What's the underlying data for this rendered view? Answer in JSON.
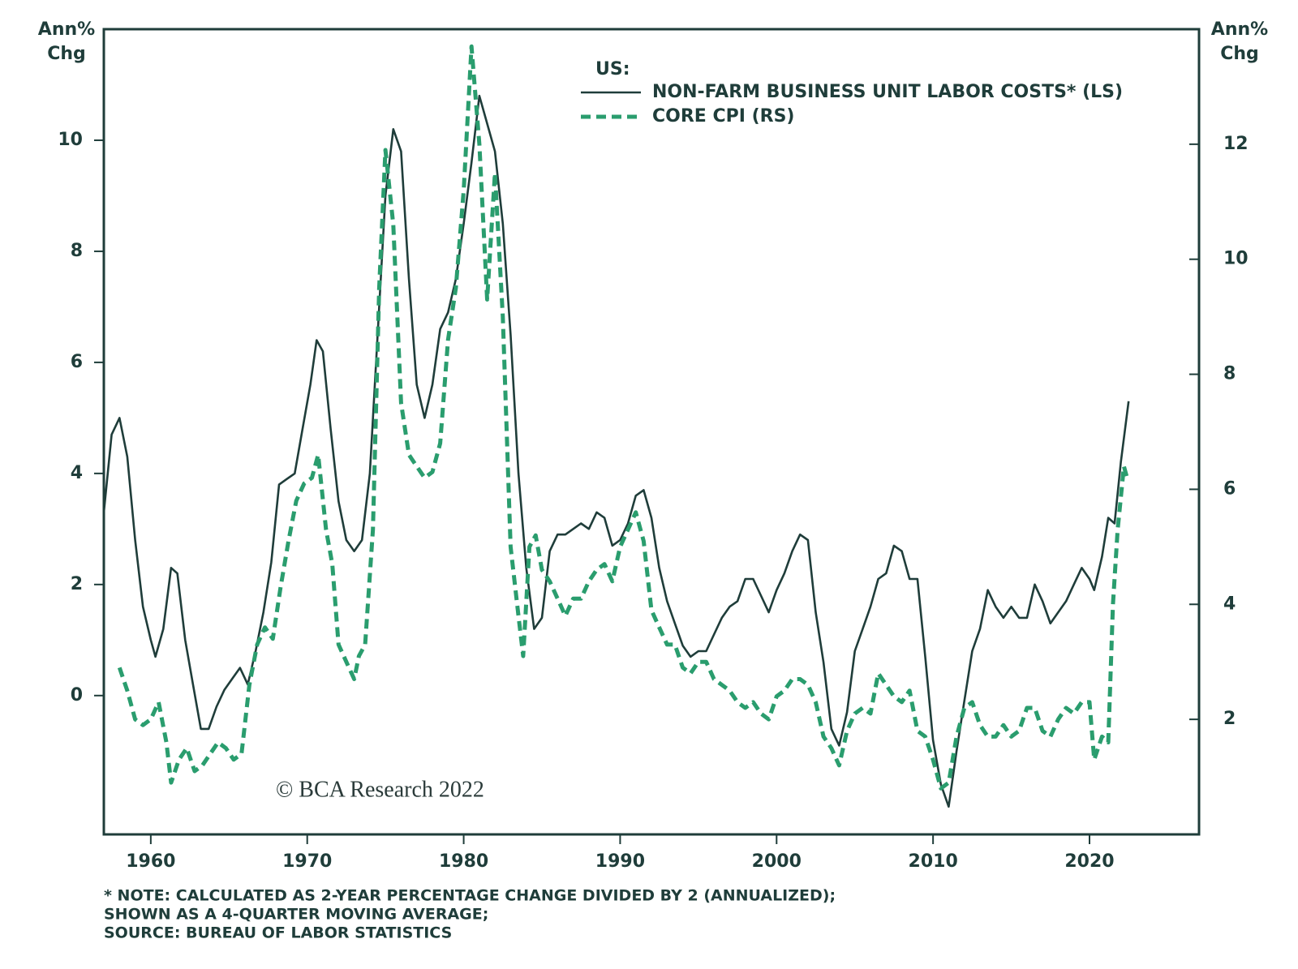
{
  "chart_data": {
    "type": "line",
    "y_label": [
      "Ann%",
      "Chg"
    ],
    "y2_label": [
      "Ann%",
      "Chg"
    ],
    "legend_title": "US:",
    "watermark": "© BCA Research 2022",
    "notes": [
      "* NOTE: CALCULATED AS 2-YEAR PERCENTAGE CHANGE DIVIDED BY 2 (ANNUALIZED);",
      "SHOWN AS A 4-QUARTER MOVING AVERAGE;",
      "SOURCE: BUREAU OF LABOR STATISTICS"
    ],
    "xlim": [
      1957,
      2027
    ],
    "xticks": [
      1960,
      1970,
      1980,
      1990,
      2000,
      2010,
      2020
    ],
    "ylim": [
      -2.5,
      12
    ],
    "yticks": [
      0,
      2,
      4,
      6,
      8,
      10
    ],
    "y2lim": [
      0,
      14
    ],
    "y2ticks": [
      2,
      4,
      6,
      8,
      10,
      12
    ],
    "series": [
      {
        "name": "NON-FARM BUSINESS UNIT LABOR COSTS* (LS)",
        "color": "#1f3d3a",
        "style": "solid",
        "axis": "y",
        "x": [
          1957,
          1957.5,
          1958,
          1958.5,
          1959,
          1959.5,
          1960,
          1960.3,
          1960.8,
          1961.3,
          1961.7,
          1962.2,
          1962.7,
          1963.2,
          1963.7,
          1964.2,
          1964.7,
          1965.2,
          1965.7,
          1966.2,
          1966.7,
          1967.2,
          1967.7,
          1968.2,
          1968.7,
          1969.2,
          1969.7,
          1970.2,
          1970.6,
          1971,
          1971.5,
          1972,
          1972.5,
          1973,
          1973.5,
          1974,
          1974.5,
          1975,
          1975.5,
          1976,
          1976.5,
          1977,
          1977.5,
          1978,
          1978.5,
          1979,
          1979.5,
          1980,
          1980.5,
          1981,
          1981.5,
          1982,
          1982.5,
          1983,
          1983.5,
          1984,
          1984.5,
          1985,
          1985.5,
          1986,
          1986.5,
          1987,
          1987.5,
          1988,
          1988.5,
          1989,
          1989.5,
          1990,
          1990.5,
          1991,
          1991.5,
          1992,
          1992.5,
          1993,
          1993.5,
          1994,
          1994.5,
          1995,
          1995.5,
          1996,
          1996.5,
          1997,
          1997.5,
          1998,
          1998.5,
          1999,
          1999.5,
          2000,
          2000.5,
          2001,
          2001.5,
          2002,
          2002.5,
          2003,
          2003.5,
          2004,
          2004.5,
          2005,
          2005.5,
          2006,
          2006.5,
          2007,
          2007.5,
          2008,
          2008.5,
          2009,
          2009.5,
          2010,
          2010.5,
          2011,
          2011.5,
          2012,
          2012.5,
          2013,
          2013.5,
          2014,
          2014.5,
          2015,
          2015.5,
          2016,
          2016.5,
          2017,
          2017.5,
          2018,
          2018.5,
          2019,
          2019.5,
          2020,
          2020.3,
          2020.8,
          2021.2,
          2021.6,
          2022,
          2022.5
        ],
        "values": [
          3.3,
          4.7,
          5.0,
          4.3,
          2.8,
          1.6,
          1.0,
          0.7,
          1.2,
          2.3,
          2.2,
          1.0,
          0.2,
          -0.6,
          -0.6,
          -0.2,
          0.1,
          0.3,
          0.5,
          0.2,
          0.8,
          1.5,
          2.4,
          3.8,
          3.9,
          4.0,
          4.8,
          5.6,
          6.4,
          6.2,
          4.8,
          3.5,
          2.8,
          2.6,
          2.8,
          4.0,
          6.5,
          9.0,
          10.2,
          9.8,
          7.5,
          5.6,
          5.0,
          5.6,
          6.6,
          6.9,
          7.5,
          8.5,
          9.6,
          10.8,
          10.3,
          9.8,
          8.5,
          6.5,
          4.0,
          2.3,
          1.2,
          1.4,
          2.6,
          2.9,
          2.9,
          3.0,
          3.1,
          3.0,
          3.3,
          3.2,
          2.7,
          2.8,
          3.1,
          3.6,
          3.7,
          3.2,
          2.3,
          1.7,
          1.3,
          0.9,
          0.7,
          0.8,
          0.8,
          1.1,
          1.4,
          1.6,
          1.7,
          2.1,
          2.1,
          1.8,
          1.5,
          1.9,
          2.2,
          2.6,
          2.9,
          2.8,
          1.5,
          0.6,
          -0.6,
          -0.9,
          -0.3,
          0.8,
          1.2,
          1.6,
          2.1,
          2.2,
          2.7,
          2.6,
          2.1,
          2.1,
          0.7,
          -0.8,
          -1.6,
          -2.0,
          -1.0,
          -0.1,
          0.8,
          1.2,
          1.9,
          1.6,
          1.4,
          1.6,
          1.4,
          1.4,
          2.0,
          1.7,
          1.3,
          1.5,
          1.7,
          2.0,
          2.3,
          2.1,
          1.9,
          2.5,
          3.2,
          3.1,
          4.2,
          5.3
        ]
      },
      {
        "name": "CORE CPI (RS)",
        "color": "#2a9d6e",
        "style": "dashed",
        "axis": "y2",
        "x": [
          1958,
          1958.5,
          1959,
          1959.5,
          1960,
          1960.5,
          1961,
          1961.3,
          1961.8,
          1962.3,
          1962.8,
          1963.3,
          1963.8,
          1964.3,
          1964.8,
          1965.3,
          1965.8,
          1966.3,
          1966.8,
          1967.3,
          1967.8,
          1968.3,
          1968.8,
          1969.3,
          1969.8,
          1970.3,
          1970.7,
          1971.2,
          1971.6,
          1972,
          1972.5,
          1973,
          1973.3,
          1973.7,
          1974.2,
          1974.6,
          1975,
          1975.5,
          1976,
          1976.5,
          1977,
          1977.5,
          1978,
          1978.5,
          1979,
          1979.5,
          1980,
          1980.5,
          1981,
          1981.5,
          1982,
          1982.5,
          1983,
          1983.5,
          1983.8,
          1984.2,
          1984.6,
          1985,
          1985.5,
          1986,
          1986.5,
          1987,
          1987.5,
          1988,
          1988.5,
          1989,
          1989.5,
          1990,
          1990.5,
          1991,
          1991.5,
          1992,
          1992.5,
          1993,
          1993.5,
          1994,
          1994.5,
          1995,
          1995.5,
          1996,
          1996.5,
          1997,
          1997.5,
          1998,
          1998.5,
          1999,
          1999.5,
          2000,
          2000.5,
          2001,
          2001.5,
          2002,
          2002.5,
          2003,
          2003.5,
          2004,
          2004.5,
          2005,
          2005.5,
          2006,
          2006.5,
          2007,
          2007.5,
          2008,
          2008.5,
          2009,
          2009.5,
          2010,
          2010.5,
          2011,
          2011.5,
          2012,
          2012.5,
          2013,
          2013.5,
          2014,
          2014.5,
          2015,
          2015.5,
          2016,
          2016.5,
          2017,
          2017.5,
          2018,
          2018.5,
          2019,
          2019.5,
          2020,
          2020.3,
          2020.8,
          2021.2,
          2021.5,
          2021.8,
          2022.2,
          2022.4
        ],
        "values": [
          2.9,
          2.5,
          2.0,
          1.9,
          2.0,
          2.3,
          1.6,
          0.9,
          1.3,
          1.5,
          1.1,
          1.2,
          1.4,
          1.6,
          1.5,
          1.3,
          1.4,
          2.6,
          3.3,
          3.6,
          3.4,
          4.3,
          5.1,
          5.8,
          6.1,
          6.2,
          6.6,
          5.3,
          4.7,
          3.3,
          3.0,
          2.7,
          3.1,
          3.3,
          5.3,
          9.5,
          11.9,
          10.6,
          7.5,
          6.6,
          6.4,
          6.2,
          6.3,
          6.8,
          8.6,
          9.5,
          11.2,
          13.7,
          12.0,
          9.3,
          11.5,
          9.0,
          5.0,
          3.8,
          3.1,
          5.0,
          5.2,
          4.6,
          4.4,
          4.1,
          3.8,
          4.1,
          4.1,
          4.4,
          4.6,
          4.7,
          4.4,
          5.0,
          5.3,
          5.6,
          5.1,
          3.9,
          3.6,
          3.3,
          3.3,
          2.9,
          2.8,
          3.0,
          3.0,
          2.7,
          2.6,
          2.5,
          2.3,
          2.2,
          2.3,
          2.1,
          2.0,
          2.4,
          2.5,
          2.7,
          2.7,
          2.6,
          2.3,
          1.7,
          1.5,
          1.2,
          1.8,
          2.1,
          2.2,
          2.1,
          2.8,
          2.6,
          2.4,
          2.3,
          2.5,
          1.8,
          1.7,
          1.3,
          0.8,
          0.9,
          1.7,
          2.2,
          2.3,
          1.9,
          1.7,
          1.7,
          1.9,
          1.7,
          1.8,
          2.2,
          2.2,
          1.8,
          1.7,
          2.0,
          2.2,
          2.1,
          2.3,
          2.3,
          1.3,
          1.7,
          1.6,
          4.0,
          5.3,
          6.4,
          6.2
        ]
      }
    ]
  }
}
